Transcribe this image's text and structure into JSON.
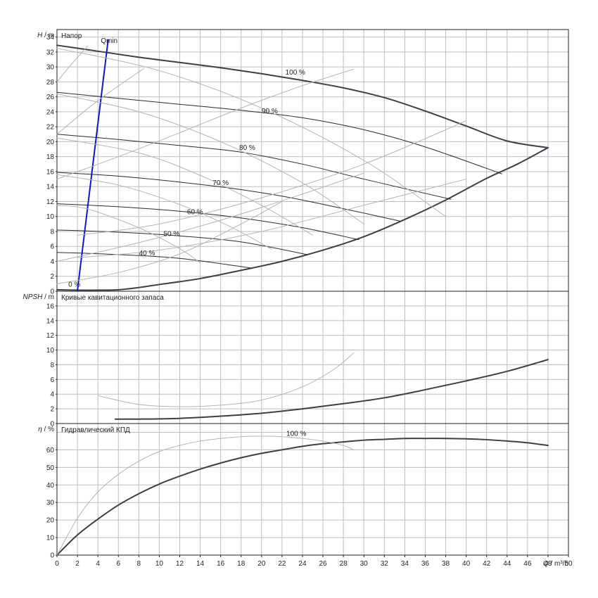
{
  "chart_data": [
    {
      "type": "line",
      "title": "Напор",
      "ylabel_var": "H",
      "ylabel_unit": "m",
      "ylabel_sep": "/",
      "xlim": [
        0,
        50
      ],
      "ylim": [
        0,
        35
      ],
      "ytick_step": 2,
      "yticks": [
        "0",
        "2",
        "4",
        "6",
        "8",
        "10",
        "12",
        "14",
        "16",
        "18",
        "20",
        "22",
        "24",
        "26",
        "28",
        "30",
        "32",
        "34"
      ],
      "grid": true,
      "annotations": [
        {
          "text": "Qmin",
          "x": 5.1,
          "y": 33.2
        },
        {
          "text": "100 %",
          "x": 23.3,
          "y": 29.0
        },
        {
          "text": "90 %",
          "x": 20.8,
          "y": 23.8
        },
        {
          "text": "80 %",
          "x": 18.6,
          "y": 18.9
        },
        {
          "text": "70 %",
          "x": 16.0,
          "y": 14.2
        },
        {
          "text": "60 %",
          "x": 13.5,
          "y": 10.3
        },
        {
          "text": "50 %",
          "x": 11.2,
          "y": 7.4
        },
        {
          "text": "40 %",
          "x": 8.8,
          "y": 4.8
        },
        {
          "text": "0 %",
          "x": 1.7,
          "y": 0.6
        }
      ],
      "series": [
        {
          "color": "#3a3f4b",
          "width": 2,
          "x": [
            0,
            4,
            8,
            12,
            16,
            20,
            24,
            28,
            32,
            36,
            40,
            44,
            48
          ],
          "y": [
            32.9,
            32.1,
            31.3,
            30.6,
            29.9,
            29.1,
            28.2,
            27.2,
            25.9,
            24.1,
            22.1,
            20.1,
            19.2
          ]
        },
        {
          "color": "#3a3f4b",
          "width": 2,
          "x": [
            0,
            2,
            4,
            6,
            8,
            10,
            14,
            18,
            22,
            26,
            30,
            34,
            38,
            42,
            45,
            48
          ],
          "y": [
            0.2,
            0.15,
            0.15,
            0.2,
            0.5,
            0.9,
            1.7,
            2.8,
            4.0,
            5.5,
            7.3,
            9.6,
            12.2,
            15.1,
            17.0,
            19.2
          ]
        },
        {
          "color": "#2a2a2a",
          "width": 1,
          "x": [
            0,
            6,
            12,
            18,
            24,
            30,
            36,
            43.5
          ],
          "y": [
            26.6,
            25.8,
            25.0,
            24.2,
            23.2,
            21.6,
            19.3,
            15.7
          ]
        },
        {
          "color": "#2a2a2a",
          "width": 1,
          "x": [
            0,
            6,
            12,
            18,
            24,
            30,
            38.5
          ],
          "y": [
            21.0,
            20.3,
            19.5,
            18.6,
            17.0,
            15.0,
            12.3
          ]
        },
        {
          "color": "#2a2a2a",
          "width": 1,
          "x": [
            0,
            6,
            12,
            18,
            24,
            33.5
          ],
          "y": [
            15.9,
            15.4,
            14.6,
            13.6,
            12.2,
            9.4
          ]
        },
        {
          "color": "#2a2a2a",
          "width": 1,
          "x": [
            0,
            6,
            12,
            18,
            24,
            29.5
          ],
          "y": [
            11.7,
            11.3,
            10.7,
            9.8,
            8.5,
            6.9
          ]
        },
        {
          "color": "#2a2a2a",
          "width": 1,
          "x": [
            0,
            6,
            12,
            18,
            24.5
          ],
          "y": [
            8.2,
            7.9,
            7.4,
            6.6,
            4.9
          ]
        },
        {
          "color": "#2a2a2a",
          "width": 1,
          "x": [
            0,
            6,
            12,
            19
          ],
          "y": [
            5.2,
            4.9,
            4.4,
            3.1
          ]
        },
        {
          "color": "#1414c8",
          "width": 2,
          "x": [
            2.0,
            5.0
          ],
          "y": [
            0.1,
            33.6
          ]
        },
        {
          "color": "#b4b4b4",
          "width": 1,
          "x": [
            0,
            10,
            20,
            30,
            38
          ],
          "y": [
            32.5,
            29.5,
            24.5,
            17.5,
            10.0
          ]
        },
        {
          "color": "#b4b4b4",
          "width": 1,
          "x": [
            0,
            8,
            16,
            24,
            30
          ],
          "y": [
            26.4,
            24.0,
            20.0,
            14.5,
            9.0
          ]
        },
        {
          "color": "#b4b4b4",
          "width": 1,
          "x": [
            0,
            8,
            14,
            20,
            25
          ],
          "y": [
            20.5,
            18.5,
            15.5,
            11.5,
            7.5
          ]
        },
        {
          "color": "#b4b4b4",
          "width": 1,
          "x": [
            0,
            6,
            12,
            17,
            21
          ],
          "y": [
            15.6,
            14.2,
            11.6,
            8.6,
            5.6
          ]
        },
        {
          "color": "#b4b4b4",
          "width": 1,
          "x": [
            0,
            3,
            8,
            12,
            14
          ],
          "y": [
            11.5,
            11.0,
            8.5,
            5.7,
            3.8
          ]
        },
        {
          "color": "#b4b4b4",
          "width": 1,
          "x": [
            2,
            10,
            20,
            30,
            40
          ],
          "y": [
            4.5,
            5.5,
            8.0,
            11.5,
            15.0
          ]
        },
        {
          "color": "#b4b4b4",
          "width": 1,
          "x": [
            2,
            10,
            20,
            30,
            40
          ],
          "y": [
            7.5,
            9.0,
            12.5,
            17.0,
            22.8
          ]
        },
        {
          "color": "#b4b4b4",
          "width": 1,
          "x": [
            0,
            6,
            12,
            18,
            24,
            29
          ],
          "y": [
            15.0,
            18.0,
            21.2,
            24.5,
            27.5,
            29.7
          ]
        },
        {
          "color": "#b4b4b4",
          "width": 1,
          "x": [
            0,
            4,
            8.5
          ],
          "y": [
            21.0,
            25.5,
            29.8
          ]
        },
        {
          "color": "#b4b4b4",
          "width": 1,
          "x": [
            0,
            1.5,
            3.0
          ],
          "y": [
            28.0,
            30.5,
            32.8
          ]
        },
        {
          "color": "#b4b4b4",
          "width": 1,
          "x": [
            0,
            8,
            16,
            24,
            30
          ],
          "y": [
            4.0,
            6.5,
            9.5,
            13.0,
            15.8
          ]
        },
        {
          "color": "#b4b4b4",
          "width": 1,
          "x": [
            0,
            6,
            12,
            18,
            22
          ],
          "y": [
            1.0,
            2.5,
            5.0,
            9.0,
            12.0
          ]
        }
      ]
    },
    {
      "type": "line",
      "title": "Кривые кавитационного запаса",
      "ylabel_var": "NPSH",
      "ylabel_unit": "m",
      "ylabel_sep": "/",
      "xlim": [
        0,
        50
      ],
      "ylim": [
        0,
        18
      ],
      "ytick_step": 2,
      "yticks": [
        "0",
        "2",
        "4",
        "6",
        "8",
        "10",
        "12",
        "14",
        "16"
      ],
      "grid": true,
      "series": [
        {
          "color": "#3a3f4b",
          "width": 2,
          "x": [
            5.7,
            8,
            12,
            16,
            20,
            24,
            28,
            32,
            36,
            40,
            44,
            48
          ],
          "y": [
            0.6,
            0.6,
            0.7,
            1.0,
            1.4,
            2.0,
            2.7,
            3.5,
            4.6,
            5.8,
            7.1,
            8.7
          ]
        },
        {
          "color": "#b4b4b4",
          "width": 1,
          "x": [
            4,
            8,
            12,
            16,
            20,
            24,
            27,
            29
          ],
          "y": [
            3.8,
            2.6,
            2.3,
            2.5,
            3.2,
            5.0,
            7.3,
            9.6
          ]
        }
      ]
    },
    {
      "type": "line",
      "title": "Гидравлический КПД",
      "ylabel_var": "η",
      "ylabel_unit": "%",
      "ylabel_sep": "/",
      "xlabel_var": "Q",
      "xlabel_unit": "m³/h",
      "xlabel_sep": "/",
      "xlim": [
        0,
        50
      ],
      "ylim": [
        0,
        75
      ],
      "ytick_step": 10,
      "yticks": [
        "0",
        "10",
        "20",
        "30",
        "40",
        "50",
        "60"
      ],
      "xticks": [
        "0",
        "2",
        "4",
        "6",
        "8",
        "10",
        "12",
        "14",
        "16",
        "18",
        "20",
        "22",
        "24",
        "26",
        "28",
        "30",
        "32",
        "34",
        "36",
        "38",
        "40",
        "42",
        "44",
        "46",
        "48",
        "50"
      ],
      "grid": true,
      "annotations": [
        {
          "text": "100 %",
          "x": 23.4,
          "y": 68.0
        }
      ],
      "series": [
        {
          "color": "#3a3f4b",
          "width": 2,
          "x": [
            0,
            2,
            4,
            6,
            8,
            10,
            12,
            14,
            16,
            18,
            20,
            22,
            24,
            26,
            28,
            30,
            32,
            34,
            36,
            38,
            40,
            42,
            44,
            46,
            48
          ],
          "y": [
            0,
            11.5,
            20.5,
            28.5,
            35,
            40.5,
            45,
            49,
            52.5,
            55.5,
            58,
            60,
            62,
            63.5,
            64.5,
            65.5,
            66,
            66.5,
            66.5,
            66.5,
            66.3,
            65.8,
            65,
            64,
            62.5
          ]
        },
        {
          "color": "#b4b4b4",
          "width": 1,
          "x": [
            0,
            2,
            4,
            6,
            8,
            10,
            12,
            14,
            16,
            18,
            20,
            22,
            24,
            26,
            28,
            29
          ],
          "y": [
            0,
            21,
            36,
            46,
            53.5,
            59,
            62.5,
            65,
            66.5,
            67.5,
            67.8,
            67.5,
            66.5,
            65,
            62.5,
            60
          ]
        }
      ]
    }
  ]
}
